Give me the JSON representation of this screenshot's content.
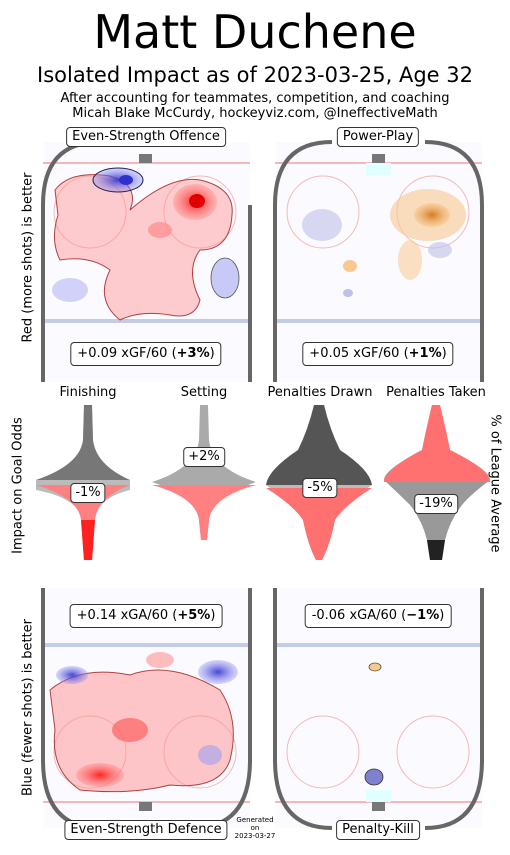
{
  "header": {
    "title": "Matt Duchene",
    "subtitle": "Isolated Impact as of 2023-03-25, Age 32",
    "note1": "After accounting for teammates, competition, and coaching",
    "note2": "Micah Blake McCurdy, hockeyviz.com, @IneffectiveMath"
  },
  "axes": {
    "left_top": "Red (more shots) is better",
    "left_mid": "Impact on Goal Odds",
    "left_bottom": "Blue (fewer shots) is better",
    "right_mid": "% of League Average"
  },
  "panels": {
    "es_offence": {
      "label": "Even-Strength Offence",
      "stat_prefix": "+0.09 xGF/60 (",
      "stat_bold": "+3%",
      "stat_suffix": ")"
    },
    "powerplay": {
      "label": "Power-Play",
      "stat_prefix": "+0.05 xGF/60 (",
      "stat_bold": "+1%",
      "stat_suffix": ")"
    },
    "es_defence": {
      "label": "Even-Strength Defence",
      "stat_prefix": "+0.14 xGA/60 (",
      "stat_bold": "+5%",
      "stat_suffix": ")"
    },
    "penaltykill": {
      "label": "Penalty-Kill",
      "stat_prefix": "-0.06 xGA/60 (",
      "stat_bold": "−1%",
      "stat_suffix": ")"
    }
  },
  "chart_data": [
    {
      "type": "bar",
      "title": "",
      "ylabel": "Impact on Goal Odds",
      "categories": [
        "Finishing",
        "Setting"
      ],
      "values": [
        -1,
        2
      ],
      "units": "%"
    },
    {
      "type": "bar",
      "title": "",
      "ylabel": "% of League Average",
      "categories": [
        "Penalties Drawn",
        "Penalties Taken"
      ],
      "values": [
        -5,
        -19
      ],
      "units": "%"
    },
    {
      "type": "heatmap",
      "panels": [
        "Even-Strength Offence",
        "Power-Play",
        "Even-Strength Defence",
        "Penalty-Kill"
      ],
      "values_percent": [
        3,
        1,
        5,
        -1
      ],
      "values_per60": [
        0.09,
        0.05,
        0.14,
        -0.06
      ]
    }
  ],
  "violins": {
    "finishing": {
      "label": "Finishing",
      "value": "-1%"
    },
    "setting": {
      "label": "Setting",
      "value": "+2%"
    },
    "drawn": {
      "label": "Penalties Drawn",
      "value": "-5%"
    },
    "taken": {
      "label": "Penalties Taken",
      "value": "-19%"
    }
  },
  "footer": {
    "gen1": "Generated",
    "gen2": "on",
    "gen3": "2023-03-27"
  },
  "colors": {
    "red": "#ff0000",
    "blue": "#3333cc",
    "orange": "#f0a040",
    "rink": "#666666",
    "blue_line": "#c4cce6",
    "goal_line": "#f4b8b8"
  }
}
